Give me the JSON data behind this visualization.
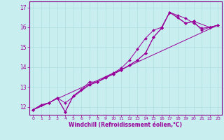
{
  "xlabel": "Windchill (Refroidissement éolien,°C)",
  "background_color": "#c8eef0",
  "grid_color": "#b0dde0",
  "line_color": "#990099",
  "xlim": [
    -0.5,
    23.5
  ],
  "ylim": [
    11.6,
    17.3
  ],
  "yticks": [
    12,
    13,
    14,
    15,
    16,
    17
  ],
  "xticks": [
    0,
    1,
    2,
    3,
    4,
    5,
    6,
    7,
    8,
    9,
    10,
    11,
    12,
    13,
    14,
    15,
    16,
    17,
    18,
    19,
    20,
    21,
    22,
    23
  ],
  "lines": [
    {
      "x": [
        0,
        1,
        2,
        3,
        4,
        5,
        6,
        7,
        8,
        9,
        10,
        11,
        12,
        13,
        14,
        15,
        16,
        17,
        18,
        19,
        20,
        21,
        22,
        23
      ],
      "y": [
        11.85,
        12.1,
        12.2,
        12.45,
        11.75,
        12.55,
        12.85,
        13.1,
        13.25,
        13.45,
        13.65,
        13.85,
        14.1,
        14.35,
        14.7,
        15.5,
        15.95,
        16.75,
        16.5,
        16.2,
        16.3,
        15.85,
        16.0,
        16.1
      ]
    },
    {
      "x": [
        0,
        1,
        2,
        3,
        4,
        5,
        6,
        7,
        8,
        9,
        10,
        11,
        12,
        13,
        14,
        15,
        16,
        17,
        18,
        19,
        20,
        21,
        22,
        23
      ],
      "y": [
        11.85,
        12.1,
        12.2,
        12.45,
        11.75,
        12.55,
        12.85,
        13.25,
        13.25,
        13.5,
        13.7,
        13.95,
        14.35,
        14.9,
        15.45,
        15.85,
        16.0,
        16.75,
        16.6,
        16.45,
        16.2,
        15.95,
        16.0,
        16.1
      ]
    },
    {
      "x": [
        0,
        2,
        3,
        4,
        7,
        8,
        10,
        11,
        12,
        13,
        14,
        15,
        16,
        17,
        19,
        20,
        22,
        23
      ],
      "y": [
        11.85,
        12.2,
        12.45,
        12.2,
        13.1,
        13.25,
        13.65,
        13.85,
        14.1,
        14.35,
        14.7,
        15.5,
        15.95,
        16.75,
        16.2,
        16.3,
        16.0,
        16.1
      ]
    },
    {
      "x": [
        0,
        23
      ],
      "y": [
        11.85,
        16.1
      ]
    }
  ]
}
